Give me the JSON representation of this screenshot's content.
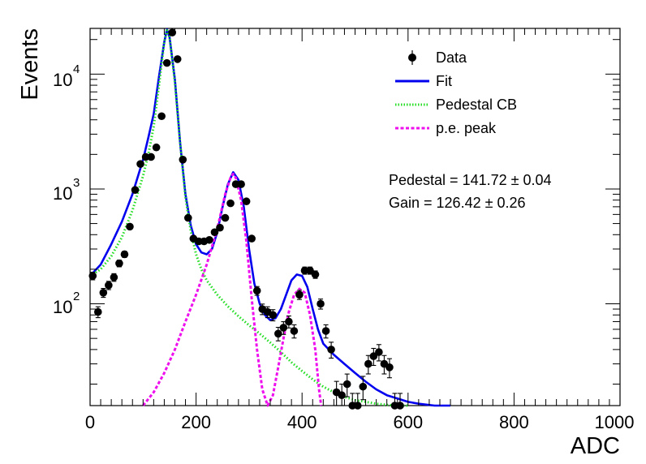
{
  "chart_data": {
    "type": "scatter",
    "xlabel": "ADC",
    "ylabel": "Events",
    "xlim": [
      0,
      1000
    ],
    "ylim": [
      13,
      25000
    ],
    "y_scale": "log",
    "grid": false,
    "legend_position": "top-right",
    "x_ticks": [
      "0",
      "200",
      "400",
      "600",
      "800",
      "1000"
    ],
    "y_ticks": [
      {
        "value": 100,
        "base": "10",
        "exp": "2"
      },
      {
        "value": 1000,
        "base": "10",
        "exp": "3"
      },
      {
        "value": 10000,
        "base": "10",
        "exp": "4"
      }
    ],
    "legend": [
      {
        "label": "Data",
        "style": "marker",
        "color": "#000000"
      },
      {
        "label": "Fit",
        "style": "solid",
        "color": "#0000ee"
      },
      {
        "label": "Pedestal CB",
        "style": "dotted",
        "color": "#22dd22"
      },
      {
        "label": "p.e. peak",
        "style": "dashed",
        "color": "#ee11ee"
      }
    ],
    "annotations": [
      "Pedestal = 141.72 ± 0.04",
      "Gain = 126.42 ± 0.26"
    ],
    "series": [
      {
        "name": "Data",
        "style": "markers",
        "color": "#000000",
        "points": [
          [
            5,
            175
          ],
          [
            15,
            85
          ],
          [
            25,
            125
          ],
          [
            35,
            145
          ],
          [
            45,
            170
          ],
          [
            55,
            225
          ],
          [
            65,
            270
          ],
          [
            75,
            470
          ],
          [
            85,
            980
          ],
          [
            95,
            1650
          ],
          [
            105,
            1900
          ],
          [
            115,
            1900
          ],
          [
            125,
            2300
          ],
          [
            135,
            4300
          ],
          [
            145,
            12500
          ],
          [
            155,
            23000
          ],
          [
            165,
            13500
          ],
          [
            175,
            1800
          ],
          [
            185,
            560
          ],
          [
            195,
            370
          ],
          [
            205,
            350
          ],
          [
            215,
            350
          ],
          [
            225,
            360
          ],
          [
            235,
            420
          ],
          [
            245,
            460
          ],
          [
            255,
            560
          ],
          [
            265,
            750
          ],
          [
            275,
            1100
          ],
          [
            285,
            1100
          ],
          [
            295,
            780
          ],
          [
            305,
            370
          ],
          [
            315,
            130
          ],
          [
            325,
            90
          ],
          [
            335,
            85
          ],
          [
            345,
            80
          ],
          [
            355,
            55
          ],
          [
            365,
            62
          ],
          [
            375,
            70
          ],
          [
            385,
            58
          ],
          [
            395,
            120
          ],
          [
            405,
            195
          ],
          [
            415,
            195
          ],
          [
            425,
            180
          ],
          [
            435,
            100
          ],
          [
            445,
            58
          ],
          [
            455,
            40
          ],
          [
            465,
            17
          ],
          [
            475,
            16
          ],
          [
            485,
            20
          ],
          [
            495,
            13
          ],
          [
            505,
            13
          ],
          [
            515,
            19
          ],
          [
            525,
            30
          ],
          [
            535,
            35
          ],
          [
            545,
            38
          ],
          [
            555,
            30
          ],
          [
            565,
            28
          ],
          [
            575,
            13
          ],
          [
            585,
            13
          ]
        ]
      },
      {
        "name": "Fit",
        "style": "solid",
        "color": "#0000ee",
        "points": [
          [
            0,
            175
          ],
          [
            20,
            220
          ],
          [
            40,
            330
          ],
          [
            60,
            520
          ],
          [
            80,
            900
          ],
          [
            100,
            1800
          ],
          [
            110,
            2800
          ],
          [
            120,
            4500
          ],
          [
            130,
            9500
          ],
          [
            140,
            19000
          ],
          [
            145,
            24500
          ],
          [
            150,
            21000
          ],
          [
            160,
            9000
          ],
          [
            170,
            2500
          ],
          [
            180,
            900
          ],
          [
            190,
            480
          ],
          [
            200,
            330
          ],
          [
            210,
            280
          ],
          [
            220,
            270
          ],
          [
            230,
            300
          ],
          [
            240,
            420
          ],
          [
            250,
            700
          ],
          [
            260,
            1100
          ],
          [
            270,
            1400
          ],
          [
            280,
            1200
          ],
          [
            290,
            700
          ],
          [
            300,
            300
          ],
          [
            310,
            150
          ],
          [
            320,
            100
          ],
          [
            330,
            80
          ],
          [
            340,
            72
          ],
          [
            350,
            75
          ],
          [
            360,
            90
          ],
          [
            370,
            120
          ],
          [
            380,
            160
          ],
          [
            390,
            180
          ],
          [
            400,
            175
          ],
          [
            410,
            140
          ],
          [
            420,
            90
          ],
          [
            430,
            60
          ],
          [
            440,
            45
          ],
          [
            460,
            36
          ],
          [
            480,
            30
          ],
          [
            500,
            25
          ],
          [
            520,
            21
          ],
          [
            540,
            18
          ],
          [
            560,
            16
          ],
          [
            580,
            15
          ],
          [
            600,
            14
          ],
          [
            620,
            13.5
          ],
          [
            650,
            13
          ],
          [
            680,
            12.2
          ]
        ]
      },
      {
        "name": "Pedestal CB",
        "style": "dotted",
        "color": "#22dd22",
        "points": [
          [
            0,
            175
          ],
          [
            20,
            200
          ],
          [
            40,
            260
          ],
          [
            60,
            380
          ],
          [
            80,
            650
          ],
          [
            100,
            1300
          ],
          [
            110,
            2000
          ],
          [
            120,
            3500
          ],
          [
            130,
            8000
          ],
          [
            140,
            19000
          ],
          [
            145,
            24000
          ],
          [
            150,
            21000
          ],
          [
            160,
            8500
          ],
          [
            170,
            2500
          ],
          [
            180,
            850
          ],
          [
            190,
            430
          ],
          [
            200,
            270
          ],
          [
            210,
            200
          ],
          [
            220,
            160
          ],
          [
            240,
            120
          ],
          [
            260,
            95
          ],
          [
            280,
            78
          ],
          [
            300,
            65
          ],
          [
            320,
            55
          ],
          [
            340,
            46
          ],
          [
            360,
            38
          ],
          [
            380,
            31
          ],
          [
            400,
            26
          ],
          [
            420,
            22
          ],
          [
            440,
            19
          ],
          [
            460,
            17
          ],
          [
            480,
            15.5
          ],
          [
            500,
            14.5
          ],
          [
            520,
            14
          ],
          [
            540,
            13.5
          ],
          [
            560,
            13.2
          ],
          [
            580,
            13
          ],
          [
            600,
            13
          ]
        ]
      },
      {
        "name": "p.e. peak",
        "style": "dashed",
        "color": "#ee11ee",
        "points": [
          [
            100,
            13
          ],
          [
            120,
            17
          ],
          [
            140,
            25
          ],
          [
            160,
            40
          ],
          [
            180,
            70
          ],
          [
            200,
            120
          ],
          [
            220,
            220
          ],
          [
            240,
            450
          ],
          [
            255,
            900
          ],
          [
            265,
            1250
          ],
          [
            270,
            1350
          ],
          [
            275,
            1250
          ],
          [
            285,
            800
          ],
          [
            295,
            350
          ],
          [
            305,
            110
          ],
          [
            315,
            40
          ],
          [
            325,
            18
          ],
          [
            335,
            13
          ],
          [
            345,
            16
          ],
          [
            355,
            28
          ],
          [
            365,
            50
          ],
          [
            375,
            85
          ],
          [
            385,
            120
          ],
          [
            395,
            135
          ],
          [
            405,
            125
          ],
          [
            415,
            80
          ],
          [
            425,
            40
          ],
          [
            432,
            18
          ],
          [
            436,
            13
          ]
        ]
      }
    ]
  }
}
